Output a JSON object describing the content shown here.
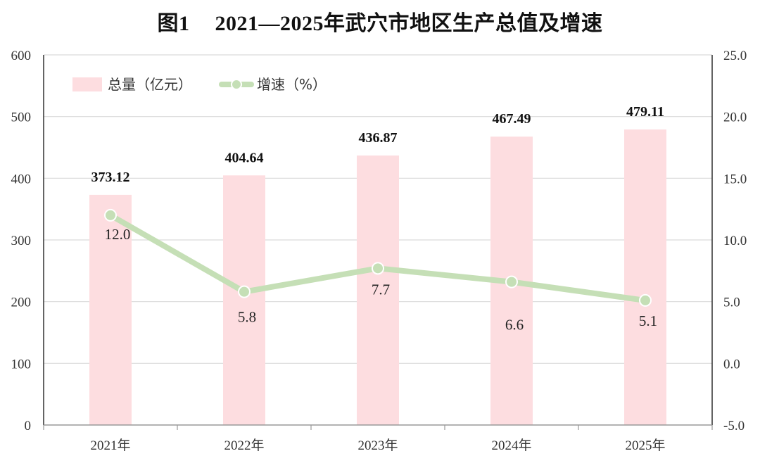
{
  "title_prefix": "图1",
  "title_text": "2021—2025年武穴市地区生产总值及增速",
  "chart_data": {
    "type": "bar",
    "title": "图1 2021—2025年武穴市地区生产总值及增速",
    "categories": [
      "2021年",
      "2022年",
      "2023年",
      "2024年",
      "2025年"
    ],
    "series": [
      {
        "name": "总量（亿元）",
        "type": "bar",
        "axis": "left",
        "color": "#fddde0",
        "values": [
          373.12,
          404.64,
          436.87,
          467.49,
          479.11
        ],
        "labels": [
          "373.12",
          "404.64",
          "436.87",
          "467.49",
          "479.11"
        ]
      },
      {
        "name": "增速（%）",
        "type": "line",
        "axis": "right",
        "color": "#c5dfb6",
        "values": [
          12.0,
          5.8,
          7.7,
          6.6,
          5.1
        ],
        "labels": [
          "12.0",
          "5.8",
          "7.7",
          "6.6",
          "5.1"
        ]
      }
    ],
    "y_left": {
      "min": 0,
      "max": 600,
      "ticks": [
        "0",
        "100",
        "200",
        "300",
        "400",
        "500",
        "600"
      ]
    },
    "y_right": {
      "min": -5,
      "max": 25,
      "ticks": [
        "-5.0",
        "0.0",
        "5.0",
        "10.0",
        "15.0",
        "20.0",
        "25.0"
      ]
    },
    "grid": true,
    "legend_position": "top-left"
  }
}
